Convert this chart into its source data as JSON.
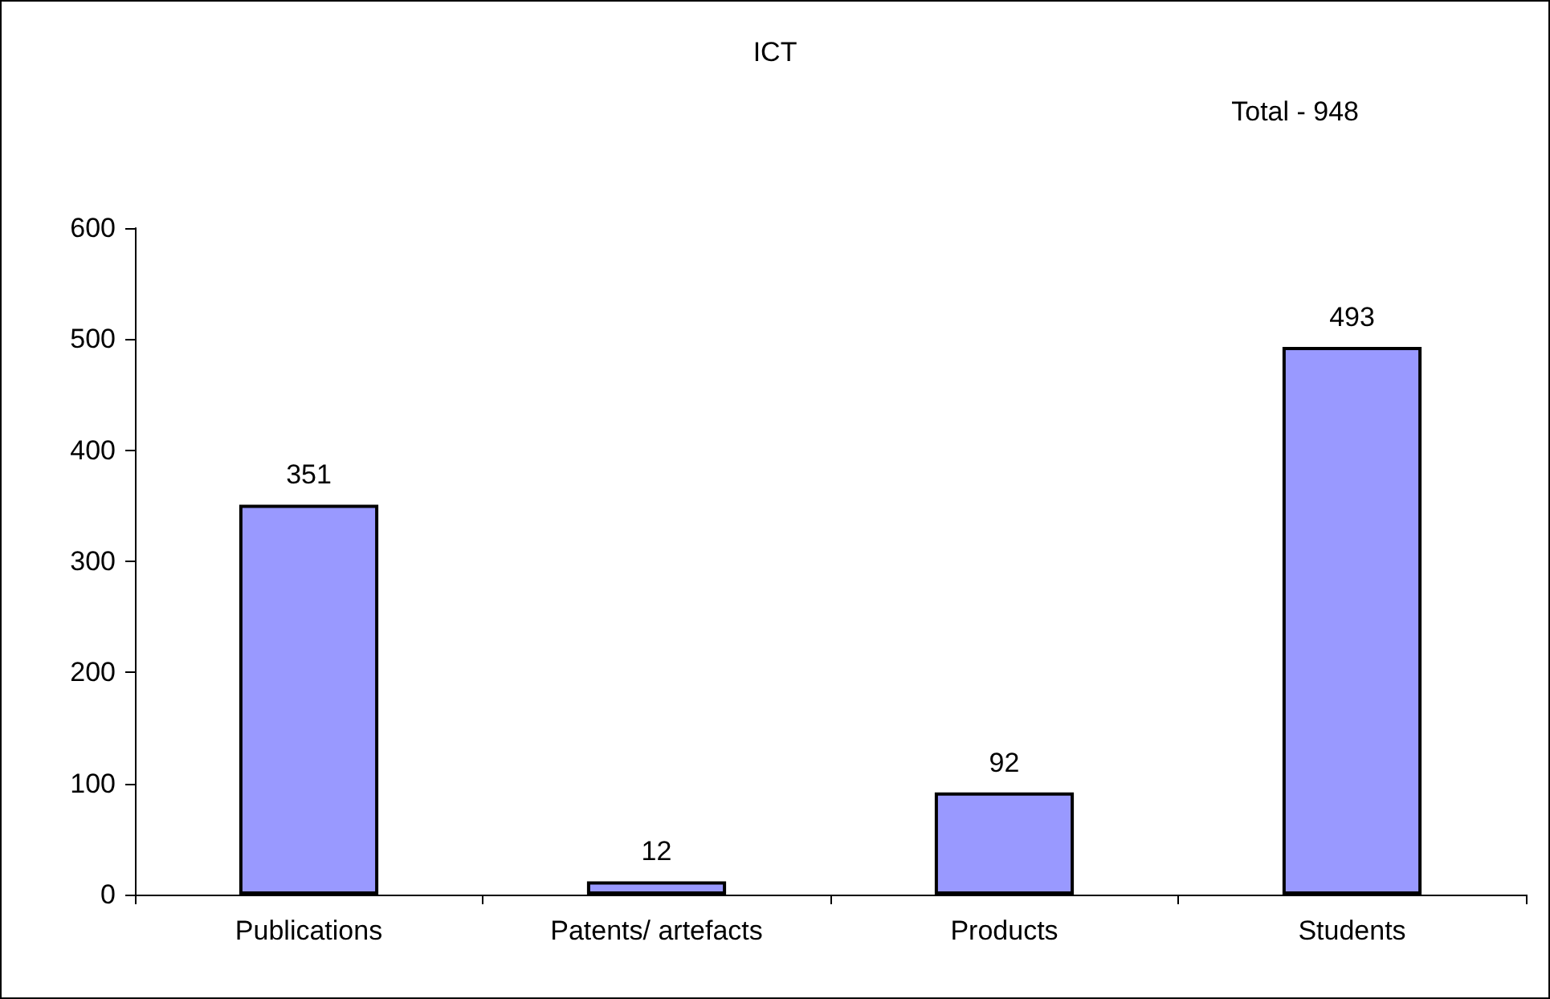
{
  "chart_data": {
    "type": "bar",
    "title": "ICT",
    "annotations": [
      "Total - 948"
    ],
    "categories": [
      "Publications",
      "Patents/ artefacts",
      "Products",
      "Students"
    ],
    "values": [
      351,
      12,
      92,
      493
    ],
    "color": "#9999ff",
    "ylim": [
      0,
      600
    ],
    "yticks": [
      0,
      100,
      200,
      300,
      400,
      500,
      600
    ],
    "grid": false,
    "data_labels": true
  }
}
